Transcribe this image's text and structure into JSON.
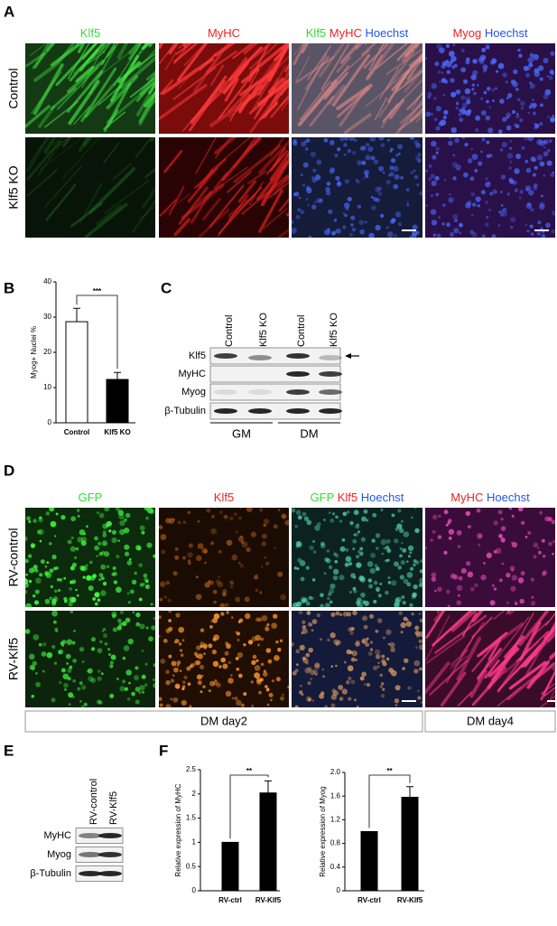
{
  "panel_labels": [
    "A",
    "B",
    "C",
    "D",
    "E",
    "F"
  ],
  "panel_a": {
    "headers": [
      [
        {
          "text": "Klf5",
          "color": "#33dd33"
        }
      ],
      [
        {
          "text": "MyHC",
          "color": "#ee2222"
        }
      ],
      [
        {
          "text": "Klf5",
          "color": "#33dd33"
        },
        {
          "text": "MyHC",
          "color": "#ee2222"
        },
        {
          "text": "Hoechst",
          "color": "#2255ee"
        }
      ],
      [
        {
          "text": "Myog",
          "color": "#ee2222"
        },
        {
          "text": "Hoechst",
          "color": "#2255ee"
        }
      ]
    ],
    "rows": [
      "Control",
      "Klf5 KO"
    ]
  },
  "panel_c": {
    "lanes": [
      "Control",
      "Klf5 KO",
      "Control",
      "Klf5 KO"
    ],
    "proteins": [
      "Klf5",
      "MyHC",
      "Myog",
      "β-Tubulin"
    ],
    "groups": [
      "GM",
      "DM"
    ]
  },
  "panel_d": {
    "headers": [
      [
        {
          "text": "GFP",
          "color": "#33dd33"
        }
      ],
      [
        {
          "text": "Klf5",
          "color": "#ee2222"
        }
      ],
      [
        {
          "text": "GFP",
          "color": "#33dd33"
        },
        {
          "text": "Klf5",
          "color": "#ee2222"
        },
        {
          "text": "Hoechst",
          "color": "#2255ee"
        }
      ],
      [
        {
          "text": "MyHC",
          "color": "#ee2222"
        },
        {
          "text": "Hoechst",
          "color": "#2255ee"
        }
      ]
    ],
    "rows": [
      "RV-control",
      "RV-Klf5"
    ],
    "conditions": [
      "DM day2",
      "DM day4"
    ]
  },
  "panel_e": {
    "lanes": [
      "RV-control",
      "RV-Klf5"
    ],
    "proteins": [
      "MyHC",
      "Myog",
      "β-Tubulin"
    ]
  },
  "chart_data": [
    {
      "type": "bar",
      "ylabel": "Myog+ Nuclei %",
      "categories": [
        "Control",
        "Klf5 KO"
      ],
      "values": [
        28.7,
        12.3
      ],
      "errors": [
        3.8,
        2.0
      ],
      "colors": [
        "#ffffff",
        "#000000"
      ],
      "ylim": [
        0,
        40
      ],
      "yticks": [
        0,
        10,
        20,
        30,
        40
      ],
      "significance": "***"
    },
    {
      "type": "bar",
      "ylabel": "Relative expression of MyHC",
      "categories": [
        "RV-ctrl",
        "RV-Klf5"
      ],
      "values": [
        1.0,
        2.02
      ],
      "errors": [
        0,
        0.25
      ],
      "colors": [
        "#000000",
        "#000000"
      ],
      "ylim": [
        0,
        2.5
      ],
      "yticks": [
        0,
        0.5,
        1,
        1.5,
        2,
        2.5
      ],
      "significance": "**"
    },
    {
      "type": "bar",
      "ylabel": "Relative expression of Myog",
      "categories": [
        "RV-ctrl",
        "RV-Klf5"
      ],
      "values": [
        1.0,
        1.58
      ],
      "errors": [
        0,
        0.18
      ],
      "colors": [
        "#000000",
        "#000000"
      ],
      "ylim": [
        0,
        2
      ],
      "yticks": [
        0,
        0.4,
        0.8,
        1.2,
        1.6,
        {
          "value": 2,
          "label": "2.0"
        }
      ],
      "significance": "**"
    }
  ]
}
